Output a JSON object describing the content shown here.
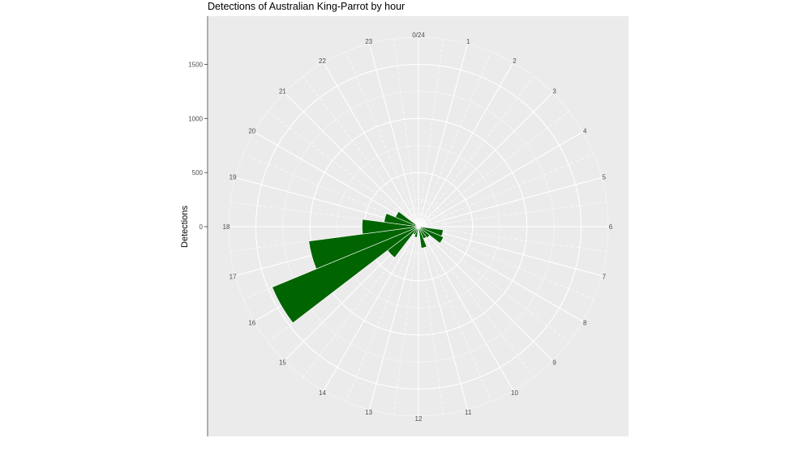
{
  "chart_data": {
    "type": "bar",
    "coord": "polar",
    "title": "Detections of Australian King-Parrot by hour",
    "xlabel": "",
    "ylabel": "Detections",
    "categories": [
      "0/24",
      "1",
      "2",
      "3",
      "4",
      "5",
      "6",
      "7",
      "8",
      "9",
      "10",
      "11",
      "12",
      "13",
      "14",
      "15",
      "16",
      "17",
      "18",
      "19",
      "20",
      "21",
      "22",
      "23"
    ],
    "values": [
      0,
      0,
      0,
      0,
      0,
      10,
      30,
      230,
      250,
      130,
      120,
      200,
      40,
      100,
      80,
      360,
      1460,
      1020,
      520,
      320,
      230,
      0,
      0,
      0
    ],
    "y_ticks": [
      0,
      500,
      1000,
      1500
    ],
    "ylim": [
      0,
      1750
    ],
    "grid": true,
    "legend": "none",
    "colors": {
      "bar": "#006400",
      "panel": "#ebebeb",
      "grid": "#ffffff"
    }
  }
}
